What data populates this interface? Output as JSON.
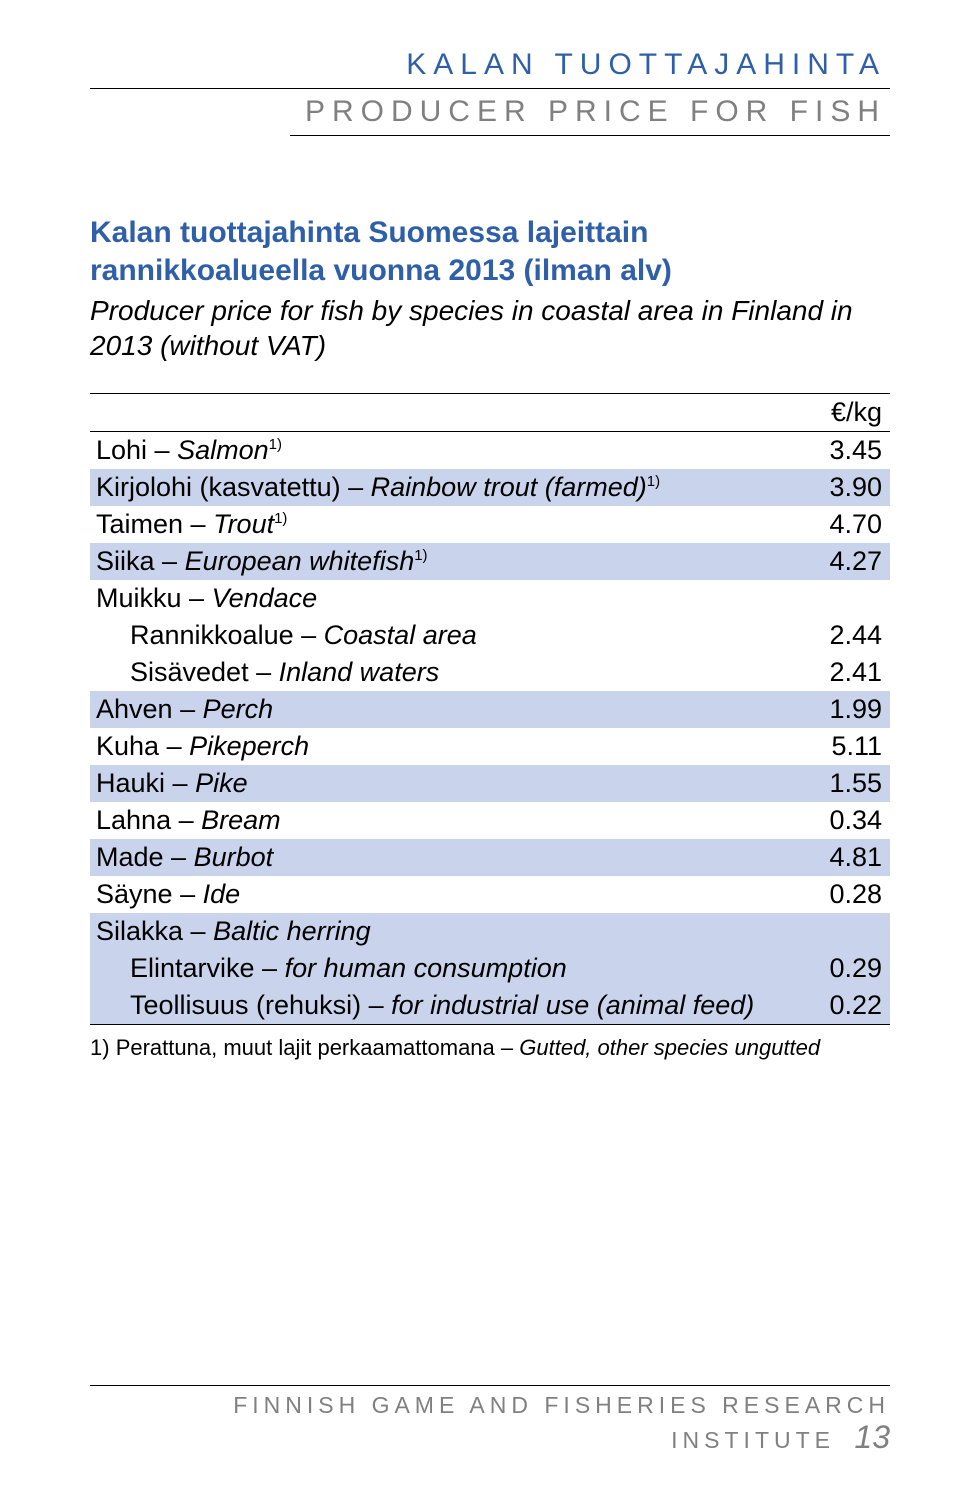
{
  "header": {
    "fi": "KALAN TUOTTAJAHINTA",
    "en": "PRODUCER PRICE FOR FISH"
  },
  "title": {
    "fi_line1": "Kalan tuottajahinta Suomessa lajeittain rannikkoalueella vuonna 2013 (ilman alv)",
    "en_line1": "Producer price for fish by species in coastal area in Finland in 2013 (without VAT)"
  },
  "table": {
    "unit": "€/kg",
    "band_color": "#c9d4ec",
    "rows": [
      {
        "label_fi": "Lohi",
        "label_en": "Salmon",
        "sup": "1)",
        "value": "3.45",
        "band": false
      },
      {
        "label_fi": "Kirjolohi (kasvatettu)",
        "label_en": "Rainbow trout (farmed)",
        "sup": "1)",
        "value": "3.90",
        "band": true
      },
      {
        "label_fi": "Taimen",
        "label_en": "Trout",
        "sup": "1)",
        "value": "4.70",
        "band": false
      },
      {
        "label_fi": "Siika",
        "label_en": "European whitefish",
        "sup": "1)",
        "value": "4.27",
        "band": true
      },
      {
        "label_fi": "Muikku",
        "label_en": "Vendace",
        "value": "",
        "band": false
      },
      {
        "indent": true,
        "label_fi": "Rannikkoalue",
        "label_en": "Coastal area",
        "value": "2.44",
        "band": false
      },
      {
        "indent": true,
        "label_fi": "Sisävedet",
        "label_en": "Inland waters",
        "value": "2.41",
        "band": false
      },
      {
        "label_fi": "Ahven",
        "label_en": "Perch",
        "value": "1.99",
        "band": true
      },
      {
        "label_fi": "Kuha",
        "label_en": "Pikeperch",
        "value": "5.11",
        "band": false
      },
      {
        "label_fi": "Hauki",
        "label_en": "Pike",
        "value": "1.55",
        "band": true
      },
      {
        "label_fi": "Lahna",
        "label_en": "Bream",
        "value": "0.34",
        "band": false
      },
      {
        "label_fi": "Made",
        "label_en": "Burbot",
        "value": "4.81",
        "band": true
      },
      {
        "label_fi": "Säyne",
        "label_en": "Ide",
        "value": "0.28",
        "band": false
      },
      {
        "label_fi": "Silakka",
        "label_en": "Baltic herring",
        "value": "",
        "band": true
      },
      {
        "indent": true,
        "label_fi": "Elintarvike",
        "label_en": "for human consumption",
        "value": "0.29",
        "band": true
      },
      {
        "indent": true,
        "label_fi": "Teollisuus (rehuksi)",
        "label_en": "for industrial use (animal feed)",
        "value": "0.22",
        "band": true
      }
    ]
  },
  "footnote": {
    "marker": "1)",
    "fi": "Perattuna, muut lajit perkaamattomana",
    "en": "Gutted, other species ungutted"
  },
  "footer": {
    "text": "FINNISH GAME AND FISHERIES RESEARCH INSTITUTE",
    "page": "13"
  }
}
